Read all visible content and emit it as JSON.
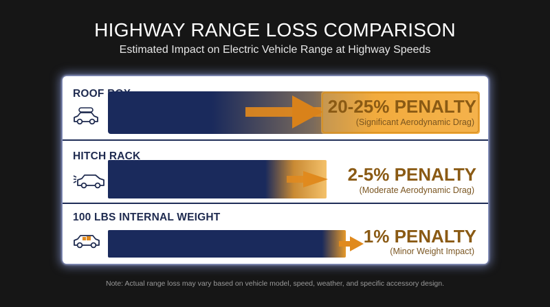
{
  "header": {
    "title": "HIGHWAY RANGE LOSS COMPARISON",
    "subtitle": "Estimated Impact on Electric Vehicle Range at Highway Speeds"
  },
  "footer": {
    "note": "Note: Actual range loss may vary based on vehicle model, speed, weather, and specific accessory design."
  },
  "colors": {
    "bar": "#1a2a5c",
    "accent": "#f0a12a",
    "penalty_text": "#8a5a14"
  },
  "icons": [
    "car-roof-box-icon",
    "car-hitch-rack-icon",
    "car-cargo-icon",
    "arrow-right-icon"
  ],
  "chart_data": {
    "type": "bar",
    "orientation": "horizontal",
    "title": "HIGHWAY RANGE LOSS COMPARISON",
    "subtitle": "Estimated Impact on Electric Vehicle Range at Highway Speeds",
    "categories": [
      "ROOF BOX",
      "HITCH RACK",
      "100 LBS INTERNAL WEIGHT"
    ],
    "series": [
      {
        "values_pct_range": [
          [
            20,
            25
          ],
          [
            2,
            5
          ],
          [
            1,
            1
          ]
        ]
      }
    ],
    "labels": [
      "20-25% PENALTY",
      "2-5% PENALTY",
      "1% PENALTY"
    ],
    "descriptions": [
      "(Significant Aerodynamic Drag)",
      "(Moderate Aerodynamic Drag)",
      "(Minor Weight Impact)"
    ],
    "legend": "none",
    "grid": false
  }
}
